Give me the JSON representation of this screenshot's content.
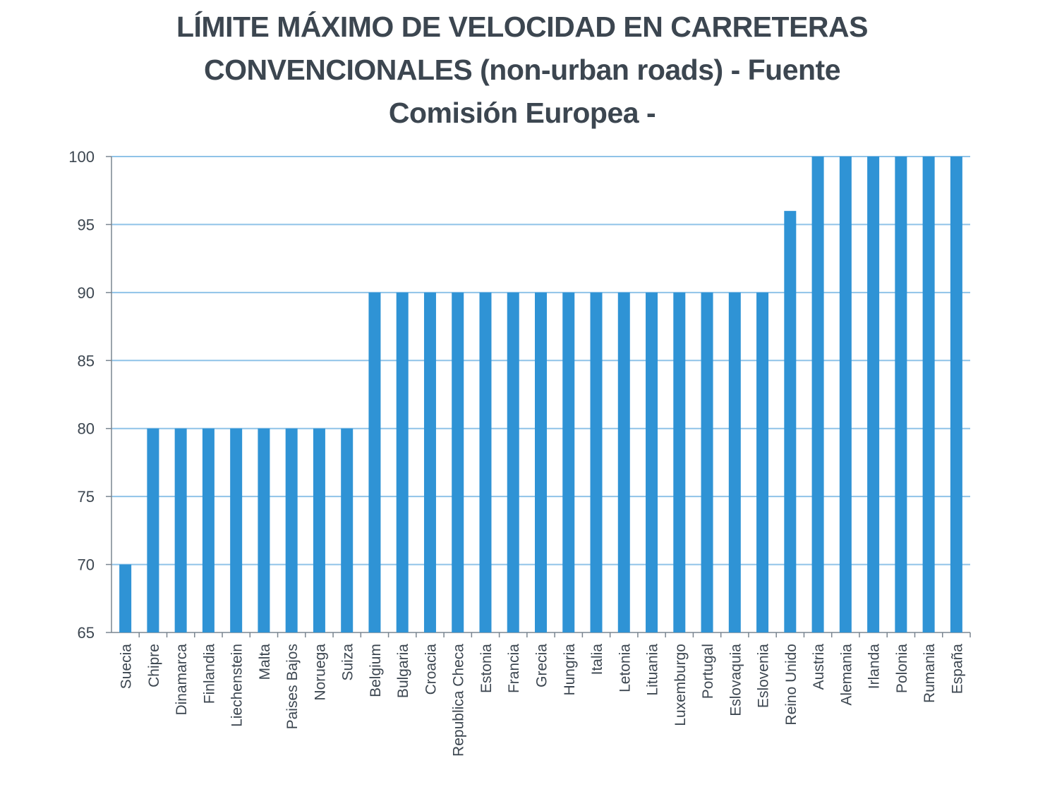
{
  "chart_data": {
    "type": "bar",
    "title_lines": [
      "LÍMITE MÁXIMO DE VELOCIDAD EN CARRETERAS",
      "CONVENCIONALES (non-urban roads) - Fuente",
      "Comisión Europea -"
    ],
    "xlabel": "",
    "ylabel": "",
    "ylim": [
      65,
      100
    ],
    "yticks": [
      65,
      70,
      75,
      80,
      85,
      90,
      95,
      100
    ],
    "grid": true,
    "legend": "none",
    "bar_color": "#2f93d5",
    "grid_color": "#8fc3e8",
    "categories": [
      "Suecia",
      "Chipre",
      "Dinamarca",
      "Finlandia",
      "Liechenstein",
      "Malta",
      "Paises Bajos",
      "Noruega",
      "Suiza",
      "Belgium",
      "Bulgaria",
      "Croacia",
      "Republica Checa",
      "Estonia",
      "Francia",
      "Grecia",
      "Hungria",
      "Italia",
      "Letonia",
      "Lituania",
      "Luxemburgo",
      "Portugal",
      "Eslovaquia",
      "Eslovenia",
      "Reino Unido",
      "Austria",
      "Alemania",
      "Irlanda",
      "Polonia",
      "Rumania",
      "España"
    ],
    "values": [
      70,
      80,
      80,
      80,
      80,
      80,
      80,
      80,
      80,
      90,
      90,
      90,
      90,
      90,
      90,
      90,
      90,
      90,
      90,
      90,
      90,
      90,
      90,
      90,
      96,
      100,
      100,
      100,
      100,
      100,
      100
    ]
  }
}
